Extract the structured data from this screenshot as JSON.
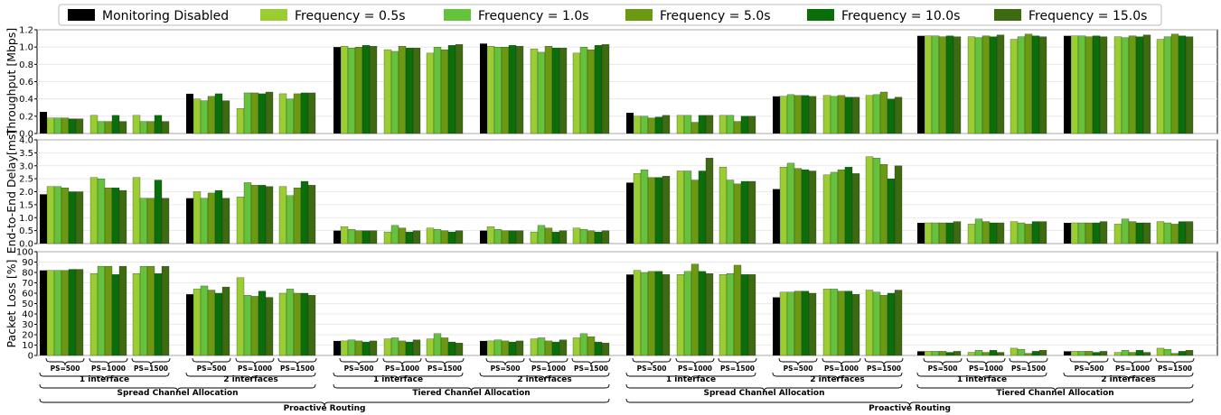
{
  "chart_data": {
    "type": "bar",
    "legend": {
      "placement": "top",
      "series": [
        "Monitoring Disabled",
        "Frequency = 0.5s",
        "Frequency = 1.0s",
        "Frequency = 5.0s",
        "Frequency = 10.0s",
        "Frequency = 15.0s"
      ]
    },
    "colors": [
      "#000000",
      "#9acd32",
      "#66c23c",
      "#6b9a12",
      "#0a6f0a",
      "#3e6b12"
    ],
    "panels": [
      {
        "ylabel": "Throughput [Mbps]",
        "ylim": [
          0,
          1.2
        ],
        "yticks": [
          "0.0",
          "0.2",
          "0.4",
          "0.6",
          "0.8",
          "1.0",
          "1.2"
        ]
      },
      {
        "ylabel": "End-to-End Delay[ms]",
        "ylim": [
          0,
          4.0
        ],
        "yticks": [
          "0.0",
          "0.5",
          "1.0",
          "1.5",
          "2.0",
          "2.5",
          "3.0",
          "3.5",
          "4.0"
        ]
      },
      {
        "ylabel": "Packet Loss [%]",
        "ylim": [
          0,
          100
        ],
        "yticks": [
          "0",
          "10",
          "20",
          "30",
          "40",
          "50",
          "60",
          "70",
          "80",
          "90",
          "100"
        ]
      }
    ],
    "x_hierarchy": {
      "packet_sizes": [
        "PS=500",
        "PS=1000",
        "PS=1500"
      ],
      "interfaces": [
        "1 interface",
        "2 interfaces"
      ],
      "allocations": [
        "Spread Channel Allocation",
        "Tiered Channel Allocation"
      ],
      "routing": [
        "Proactive Routing",
        "Proactive Routing"
      ]
    },
    "groups": [
      {
        "disabled": [
          0.25,
          1.9,
          82
        ],
        "ps": [
          {
            "tp": [
              0.18,
              0.18,
              0.18,
              0.17,
              0.17
            ],
            "dl": [
              2.2,
              2.2,
              2.15,
              2.0,
              2.0
            ],
            "pl": [
              82,
              82,
              82,
              83,
              83
            ]
          },
          {
            "tp": [
              0.21,
              0.14,
              0.14,
              0.21,
              0.14
            ],
            "dl": [
              2.55,
              2.5,
              2.15,
              2.15,
              2.05
            ],
            "pl": [
              79,
              86,
              86,
              78,
              86
            ]
          },
          {
            "tp": [
              0.21,
              0.14,
              0.14,
              0.21,
              0.14
            ],
            "dl": [
              2.55,
              1.75,
              1.75,
              2.45,
              1.75
            ],
            "pl": [
              79,
              86,
              86,
              79,
              86
            ]
          }
        ]
      },
      {
        "disabled": [
          0.46,
          1.75,
          59
        ],
        "ps": [
          {
            "tp": [
              0.4,
              0.38,
              0.43,
              0.46,
              0.38
            ],
            "dl": [
              2.0,
              1.75,
              1.95,
              2.05,
              1.75
            ],
            "pl": [
              64,
              67,
              63,
              60,
              66
            ]
          },
          {
            "tp": [
              0.29,
              0.47,
              0.47,
              0.46,
              0.48
            ],
            "dl": [
              1.8,
              2.35,
              2.25,
              2.25,
              2.2
            ],
            "pl": [
              75,
              58,
              57,
              62,
              56
            ]
          },
          {
            "tp": [
              0.46,
              0.4,
              0.46,
              0.47,
              0.47
            ],
            "dl": [
              2.2,
              1.85,
              2.15,
              2.4,
              2.25
            ],
            "pl": [
              60,
              64,
              60,
              60,
              58
            ]
          }
        ]
      },
      {
        "disabled": [
          1.0,
          0.5,
          14
        ],
        "ps": [
          {
            "tp": [
              1.01,
              0.99,
              1.0,
              1.02,
              1.01
            ],
            "dl": [
              0.65,
              0.55,
              0.5,
              0.5,
              0.5
            ],
            "pl": [
              14,
              15,
              14,
              13,
              14
            ]
          },
          {
            "tp": [
              0.97,
              0.95,
              1.01,
              0.99,
              0.99
            ],
            "dl": [
              0.45,
              0.7,
              0.6,
              0.45,
              0.5
            ],
            "pl": [
              16,
              17,
              14,
              13,
              15
            ]
          },
          {
            "tp": [
              0.93,
              1.0,
              0.97,
              1.02,
              1.03
            ],
            "dl": [
              0.6,
              0.55,
              0.5,
              0.45,
              0.5
            ],
            "pl": [
              16,
              21,
              17,
              13,
              12
            ]
          }
        ]
      },
      {
        "disabled": [
          1.04,
          0.5,
          14
        ],
        "ps": [
          {
            "tp": [
              1.01,
              1.0,
              1.0,
              1.02,
              1.01
            ],
            "dl": [
              0.65,
              0.55,
              0.5,
              0.5,
              0.5
            ],
            "pl": [
              14,
              15,
              14,
              13,
              14
            ]
          },
          {
            "tp": [
              0.98,
              0.94,
              1.01,
              0.99,
              0.99
            ],
            "dl": [
              0.45,
              0.7,
              0.6,
              0.45,
              0.5
            ],
            "pl": [
              16,
              17,
              14,
              13,
              15
            ]
          },
          {
            "tp": [
              0.93,
              1.0,
              0.97,
              1.02,
              1.03
            ],
            "dl": [
              0.6,
              0.55,
              0.5,
              0.45,
              0.5
            ],
            "pl": [
              17,
              21,
              18,
              13,
              12
            ]
          }
        ]
      },
      {
        "disabled": [
          0.24,
          2.35,
          78
        ],
        "ps": [
          {
            "tp": [
              0.2,
              0.2,
              0.18,
              0.19,
              0.21
            ],
            "dl": [
              2.7,
              2.85,
              2.55,
              2.55,
              2.6
            ],
            "pl": [
              82,
              80,
              81,
              81,
              78
            ]
          },
          {
            "tp": [
              0.21,
              0.21,
              0.13,
              0.21,
              0.21
            ],
            "dl": [
              2.8,
              2.8,
              2.45,
              2.8,
              3.3
            ],
            "pl": [
              78,
              81,
              88,
              81,
              79
            ]
          },
          {
            "tp": [
              0.21,
              0.21,
              0.14,
              0.2,
              0.2
            ],
            "dl": [
              2.95,
              2.45,
              2.3,
              2.4,
              2.4
            ],
            "pl": [
              78,
              79,
              87,
              78,
              78
            ]
          }
        ]
      },
      {
        "disabled": [
          0.43,
          2.1,
          56
        ],
        "ps": [
          {
            "tp": [
              0.43,
              0.45,
              0.44,
              0.44,
              0.43
            ],
            "dl": [
              2.95,
              3.1,
              2.9,
              2.85,
              2.8
            ],
            "pl": [
              61,
              61,
              62,
              62,
              60
            ]
          },
          {
            "tp": [
              0.44,
              0.43,
              0.44,
              0.42,
              0.42
            ],
            "dl": [
              2.65,
              2.75,
              2.85,
              2.95,
              2.7
            ],
            "pl": [
              64,
              64,
              62,
              62,
              59
            ]
          },
          {
            "tp": [
              0.44,
              0.45,
              0.48,
              0.4,
              0.42
            ],
            "dl": [
              3.35,
              3.3,
              3.05,
              2.5,
              3.0
            ],
            "pl": [
              63,
              61,
              58,
              60,
              63
            ]
          }
        ]
      },
      {
        "disabled": [
          1.13,
          0.8,
          4
        ],
        "ps": [
          {
            "tp": [
              1.13,
              1.13,
              1.12,
              1.13,
              1.12
            ],
            "dl": [
              0.8,
              0.8,
              0.8,
              0.8,
              0.85
            ],
            "pl": [
              4,
              4,
              4,
              3,
              4
            ]
          },
          {
            "tp": [
              1.12,
              1.11,
              1.13,
              1.12,
              1.14
            ],
            "dl": [
              0.75,
              0.95,
              0.85,
              0.8,
              0.8
            ],
            "pl": [
              3,
              5,
              3,
              5,
              3
            ]
          },
          {
            "tp": [
              1.09,
              1.12,
              1.15,
              1.13,
              1.12
            ],
            "dl": [
              0.85,
              0.8,
              0.75,
              0.85,
              0.85
            ],
            "pl": [
              7,
              6,
              2,
              4,
              5
            ]
          }
        ]
      },
      {
        "disabled": [
          1.13,
          0.8,
          4
        ],
        "ps": [
          {
            "tp": [
              1.13,
              1.13,
              1.12,
              1.13,
              1.12
            ],
            "dl": [
              0.8,
              0.8,
              0.8,
              0.8,
              0.85
            ],
            "pl": [
              4,
              4,
              4,
              3,
              4
            ]
          },
          {
            "tp": [
              1.12,
              1.11,
              1.13,
              1.12,
              1.14
            ],
            "dl": [
              0.75,
              0.95,
              0.85,
              0.8,
              0.8
            ],
            "pl": [
              3,
              5,
              3,
              5,
              3
            ]
          },
          {
            "tp": [
              1.09,
              1.12,
              1.15,
              1.13,
              1.12
            ],
            "dl": [
              0.85,
              0.8,
              0.75,
              0.85,
              0.85
            ],
            "pl": [
              7,
              6,
              2,
              4,
              5
            ]
          }
        ]
      }
    ]
  }
}
